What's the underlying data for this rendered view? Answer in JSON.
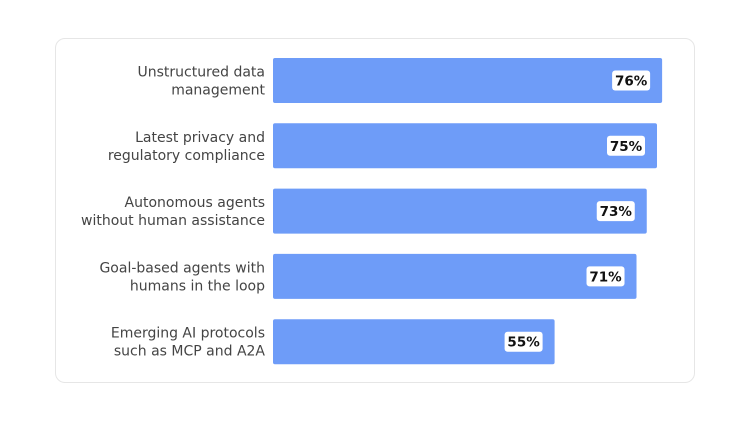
{
  "chart_data": {
    "type": "bar",
    "orientation": "horizontal",
    "categories": [
      [
        "Unstructured data",
        "management"
      ],
      [
        "Latest privacy and",
        "regulatory compliance"
      ],
      [
        "Autonomous agents",
        "without human assistance"
      ],
      [
        "Goal-based agents with",
        "humans in the loop"
      ],
      [
        "Emerging AI protocols",
        "such as MCP and A2A"
      ]
    ],
    "values": [
      76,
      75,
      73,
      71,
      55
    ],
    "value_labels": [
      "76%",
      "75%",
      "73%",
      "71%",
      "55%"
    ],
    "xlim": [
      0,
      100
    ],
    "bar_color": "#6e9cf8",
    "value_label_background": "#ffffff",
    "title": "",
    "xlabel": "",
    "ylabel": "",
    "grid": false,
    "legend": "none"
  }
}
